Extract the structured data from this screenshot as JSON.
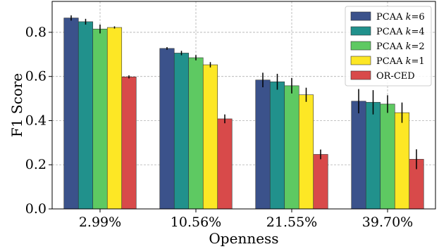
{
  "chart_data": {
    "type": "bar",
    "xlabel": "Openness",
    "ylabel": "F1 Score",
    "ylim": [
      0,
      0.94
    ],
    "yticks": [
      "0.0",
      "0.2",
      "0.4",
      "0.6",
      "0.8"
    ],
    "categories": [
      "2.99%",
      "10.56%",
      "21.55%",
      "39.70%"
    ],
    "grid": true,
    "legend_position": "top-right",
    "series": [
      {
        "name": "PCAA k=6",
        "name_main": "PCAA ",
        "name_var": "k",
        "name_tail": "=6",
        "color": "#3b528b",
        "values": [
          0.865,
          0.727,
          0.584,
          0.488
        ],
        "errors": [
          0.012,
          0.006,
          0.033,
          0.055
        ]
      },
      {
        "name": "PCAA k=4",
        "name_main": "PCAA ",
        "name_var": "k",
        "name_tail": "=4",
        "color": "#21918c",
        "values": [
          0.848,
          0.706,
          0.576,
          0.483
        ],
        "errors": [
          0.013,
          0.01,
          0.036,
          0.055
        ]
      },
      {
        "name": "PCAA k=2",
        "name_main": "PCAA ",
        "name_var": "k",
        "name_tail": "=2",
        "color": "#5ec962",
        "values": [
          0.815,
          0.685,
          0.558,
          0.475
        ],
        "errors": [
          0.02,
          0.012,
          0.035,
          0.04
        ]
      },
      {
        "name": "PCAA k=1",
        "name_main": "PCAA ",
        "name_var": "k",
        "name_tail": "=1",
        "color": "#fde725",
        "values": [
          0.822,
          0.653,
          0.517,
          0.436
        ],
        "errors": [
          0.005,
          0.012,
          0.032,
          0.046
        ]
      },
      {
        "name": "OR-CED",
        "name_main": "OR-CED",
        "name_var": "",
        "name_tail": "",
        "color": "#d84a4a",
        "values": [
          0.598,
          0.408,
          0.247,
          0.225
        ],
        "errors": [
          0.007,
          0.02,
          0.022,
          0.045
        ]
      }
    ]
  }
}
